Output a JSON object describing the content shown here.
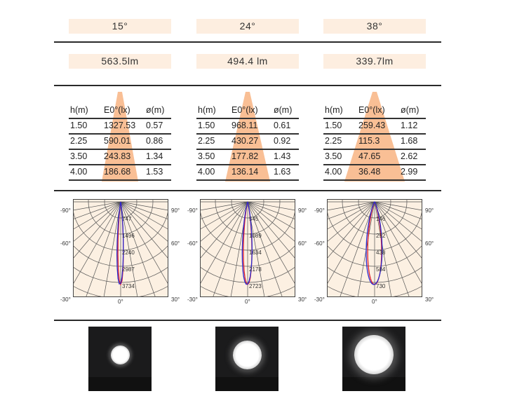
{
  "beams": [
    {
      "angle": "15°",
      "lumen": "563.5lm",
      "table": {
        "headers": [
          "h(m)",
          "E0°(lx)",
          "ø(m)"
        ],
        "rows": [
          [
            "1.50",
            "1327.53",
            "0.57"
          ],
          [
            "2.25",
            "590.01",
            "0.86"
          ],
          [
            "3.50",
            "243.83",
            "1.34"
          ],
          [
            "4.00",
            "186.68",
            "1.53"
          ]
        ]
      },
      "polar": {
        "angle_labels": [
          "-90°",
          "90°",
          "-60°",
          "60°",
          "-30°",
          "0°",
          "30°"
        ],
        "ring_values": [
          "747",
          "1496",
          "2240",
          "2987",
          "3734"
        ]
      },
      "spot_scale": 0.3
    },
    {
      "angle": "24°",
      "lumen": "494.4 lm",
      "table": {
        "headers": [
          "h(m)",
          "E0°(lx)",
          "ø(m)"
        ],
        "rows": [
          [
            "1.50",
            "968.11",
            "0.61"
          ],
          [
            "2.25",
            "430.27",
            "0.92"
          ],
          [
            "3.50",
            "177.82",
            "1.43"
          ],
          [
            "4.00",
            "136.14",
            "1.63"
          ]
        ]
      },
      "polar": {
        "angle_labels": [
          "-90°",
          "90°",
          "-60°",
          "60°",
          "-30°",
          "0°",
          "30°"
        ],
        "ring_values": [
          "545",
          "1089",
          "1634",
          "2178",
          "2723"
        ]
      },
      "spot_scale": 0.45
    },
    {
      "angle": "38°",
      "lumen": "339.7lm",
      "table": {
        "headers": [
          "h(m)",
          "E0°(lx)",
          "ø(m)"
        ],
        "rows": [
          [
            "1.50",
            "259.43",
            "1.12"
          ],
          [
            "2.25",
            "115.3",
            "1.68"
          ],
          [
            "3.50",
            "47.65",
            "2.62"
          ],
          [
            "4.00",
            "36.48",
            "2.99"
          ]
        ]
      },
      "polar": {
        "angle_labels": [
          "-90°",
          "90°",
          "-60°",
          "60°",
          "-30°",
          "0°",
          "30°"
        ],
        "ring_values": [
          "146",
          "292",
          "438",
          "584",
          "730"
        ]
      },
      "spot_scale": 0.62
    }
  ],
  "colors": {
    "pill_bg": "#fdeee0",
    "cone": "#f8b88a",
    "polar_bg": "#fcf0e2",
    "curve_a": "#e0202a",
    "curve_b": "#2a2ad0"
  }
}
